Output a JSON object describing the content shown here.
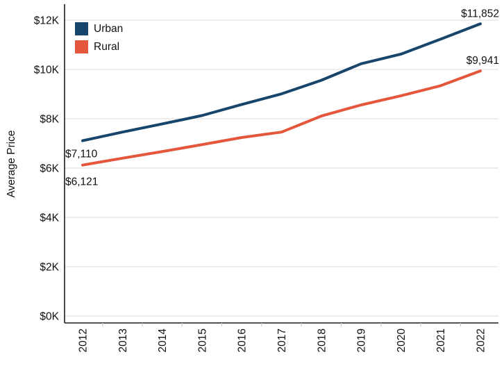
{
  "chart_data": {
    "type": "line",
    "title": "",
    "xlabel": "",
    "ylabel": "Average Price",
    "x_tick_labels": [
      "2012",
      "2013",
      "2014",
      "2015",
      "2016",
      "2017",
      "2018",
      "2019",
      "2020",
      "2021",
      "2022"
    ],
    "categories": [
      2012,
      2013,
      2014,
      2015,
      2016,
      2017,
      2018,
      2019,
      2020,
      2021,
      2022
    ],
    "y_ticks": [
      {
        "value": 0,
        "label": "$0K"
      },
      {
        "value": 2000,
        "label": "$2K"
      },
      {
        "value": 4000,
        "label": "$4K"
      },
      {
        "value": 6000,
        "label": "$6K"
      },
      {
        "value": 8000,
        "label": "$8K"
      },
      {
        "value": 10000,
        "label": "$10K"
      },
      {
        "value": 12000,
        "label": "$12K"
      }
    ],
    "ylim": [
      0,
      12600
    ],
    "grid": "horizontal",
    "legend_position": "top-left",
    "series": [
      {
        "name": "Urban",
        "color": "#17456b",
        "values": [
          7110,
          7460,
          7790,
          8130,
          8580,
          9010,
          9560,
          10230,
          10620,
          11230,
          11852
        ],
        "start_label": "$7,110",
        "end_label": "$11,852"
      },
      {
        "name": "Rural",
        "color": "#e4573c",
        "values": [
          6121,
          6400,
          6670,
          6950,
          7240,
          7460,
          8110,
          8560,
          8930,
          9340,
          9941
        ],
        "start_label": "$6,121",
        "end_label": "$9,941"
      }
    ],
    "colors": {
      "grid": "#e7e7e7",
      "axis": "#1a1a1a",
      "minor_tick": "#c9c9c9",
      "text": "#111111"
    }
  }
}
